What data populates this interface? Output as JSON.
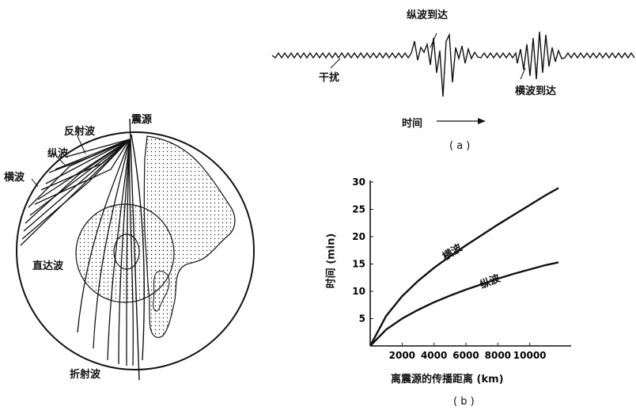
{
  "globe": {
    "labels": {
      "source": "震源",
      "reflected": "反射波",
      "longitudinal": "纵波",
      "transverse": "横波",
      "direct": "直达波",
      "refracted": "折射波"
    }
  },
  "seismogram": {
    "labels": {
      "p_arrival": "纵波到达",
      "noise": "干扰",
      "s_arrival": "横波到达",
      "time": "时间",
      "panel": "( a )"
    }
  },
  "chart_panel": {
    "panel": "( b )"
  },
  "chart_data": {
    "type": "line",
    "xlabel": "离震源的传播距离 (km)",
    "ylabel": "时间 (min)",
    "xlim": [
      0,
      12000
    ],
    "ylim": [
      0,
      30
    ],
    "x_ticks": [
      "2000",
      "4000",
      "6000",
      "8000",
      "10000"
    ],
    "y_ticks": [
      "5",
      "10",
      "15",
      "20",
      "25",
      "30"
    ],
    "grid": false,
    "series": [
      {
        "name": "横波",
        "x": [
          0,
          1000,
          2000,
          3000,
          4000,
          5000,
          6000,
          7000,
          8000,
          9000,
          10000,
          11000,
          11800
        ],
        "y": [
          0,
          5.5,
          9.1,
          11.9,
          14.3,
          16.4,
          18.4,
          20.3,
          22.2,
          24.0,
          25.8,
          27.6,
          28.9
        ]
      },
      {
        "name": "纵波",
        "x": [
          0,
          1000,
          2000,
          3000,
          4000,
          5000,
          6000,
          7000,
          8000,
          9000,
          10000,
          11000,
          11800
        ],
        "y": [
          0,
          3.0,
          5.0,
          6.6,
          8.0,
          9.2,
          10.3,
          11.3,
          12.3,
          13.2,
          14.0,
          14.8,
          15.3
        ]
      }
    ]
  }
}
